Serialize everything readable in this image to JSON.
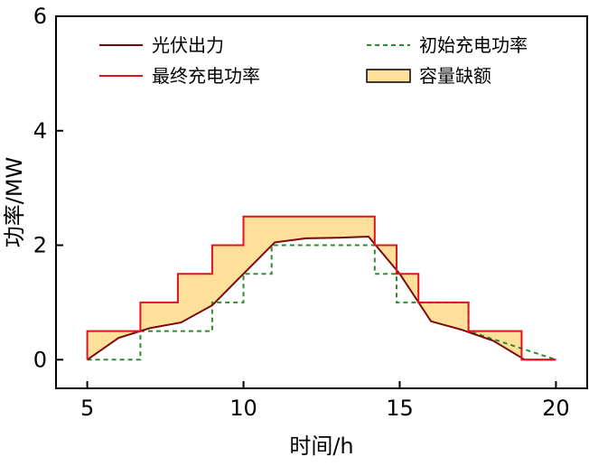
{
  "chart_data": {
    "type": "line",
    "xlabel": "时间/h",
    "ylabel": "功率/MW",
    "xlim": [
      4,
      21
    ],
    "ylim": [
      -0.5,
      6
    ],
    "x_ticks": [
      5,
      10,
      15,
      20
    ],
    "y_ticks": [
      0,
      2,
      4,
      6
    ],
    "x_tick_labels": [
      "5",
      "10",
      "15",
      "20"
    ],
    "y_tick_labels": [
      "0",
      "2",
      "4",
      "6"
    ],
    "grid": false,
    "legend_position": "top",
    "series": [
      {
        "name": "光伏出力",
        "style": "line",
        "color": "#7a0a0a",
        "x": [
          5,
          6,
          7,
          8,
          9,
          10,
          11,
          12,
          13,
          14,
          15,
          16,
          17,
          18,
          19,
          20
        ],
        "y": [
          0.0,
          0.38,
          0.55,
          0.65,
          0.95,
          1.5,
          2.05,
          2.12,
          2.13,
          2.15,
          1.5,
          0.67,
          0.52,
          0.33,
          0.0,
          0.0
        ]
      },
      {
        "name": "初始充电功率",
        "style": "dashed-step",
        "color": "#2e8b2e",
        "x": [
          5,
          6.7,
          6.7,
          9,
          9,
          10,
          10,
          10.9,
          10.9,
          14.2,
          14.2,
          14.9,
          14.9,
          17.2,
          17.2,
          20
        ],
        "y": [
          0,
          0,
          0.5,
          0.5,
          1.0,
          1.0,
          1.5,
          1.5,
          2.0,
          2.0,
          1.5,
          1.5,
          1.0,
          1.0,
          0.5,
          0.0
        ]
      },
      {
        "name": "最终充电功率",
        "style": "step",
        "color": "#e0141e",
        "x": [
          5,
          5,
          6.7,
          6.7,
          7.9,
          7.9,
          9,
          9,
          10,
          10,
          14.2,
          14.2,
          14.9,
          14.9,
          15.6,
          15.6,
          17.2,
          17.2,
          18.9,
          18.9,
          20
        ],
        "y": [
          0,
          0.5,
          0.5,
          1.0,
          1.0,
          1.5,
          1.5,
          2.0,
          2.0,
          2.5,
          2.5,
          2.0,
          2.0,
          1.5,
          1.5,
          1.0,
          1.0,
          0.5,
          0.5,
          0.0,
          0.0
        ]
      },
      {
        "name": "容量缺额",
        "style": "fill-between",
        "color": "#ffe09a"
      }
    ],
    "colors": {
      "pv": "#7a0a0a",
      "initial": "#2e8b2e",
      "final": "#e0141e",
      "gap_fill": "#ffe09a"
    }
  }
}
